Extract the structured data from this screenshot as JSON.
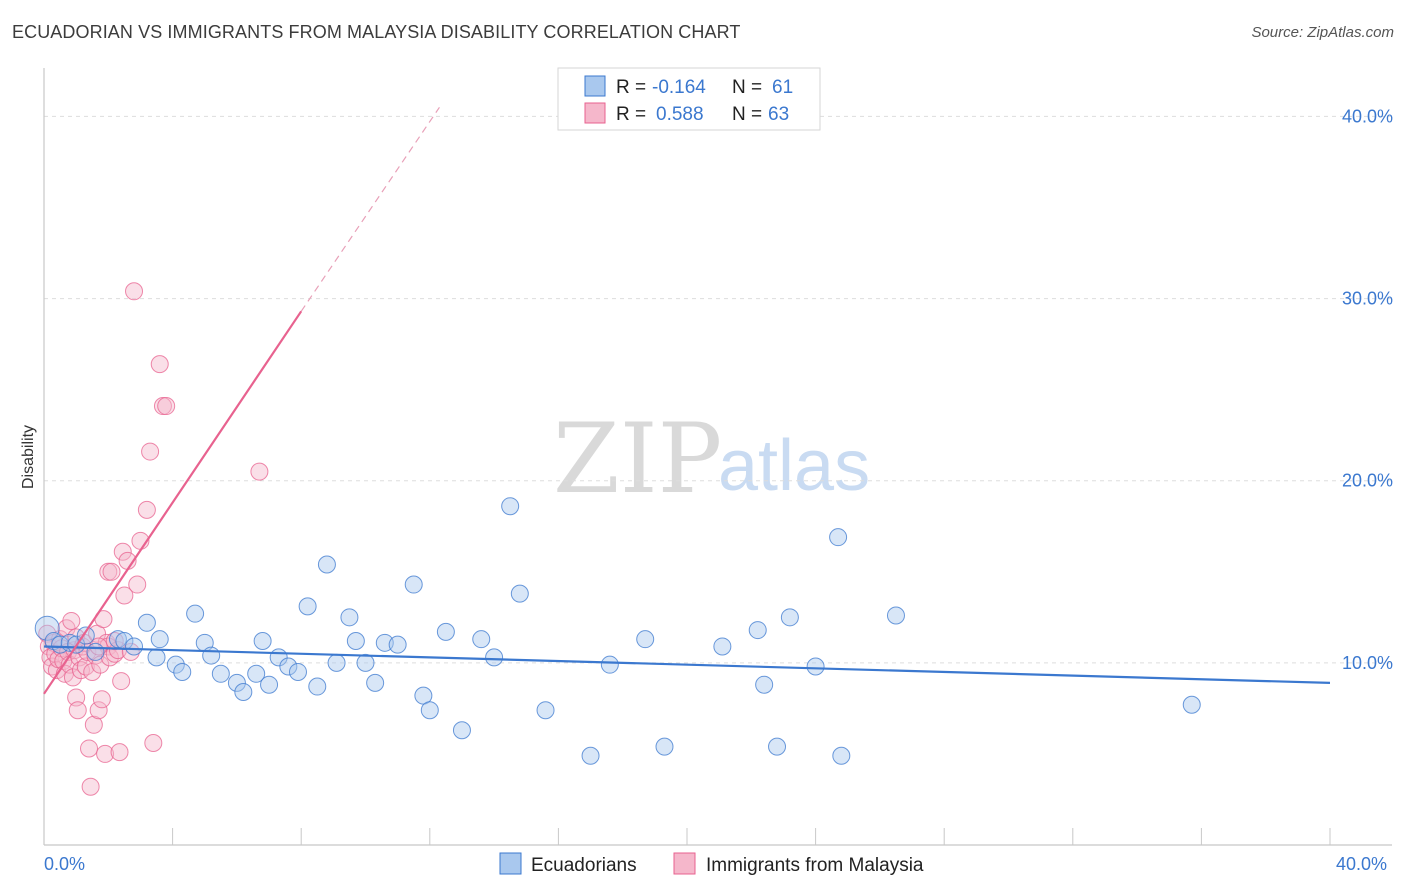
{
  "title": "ECUADORIAN VS IMMIGRANTS FROM MALAYSIA DISABILITY CORRELATION CHART",
  "source": "Source: ZipAtlas.com",
  "watermark": {
    "zip": "ZIP",
    "atlas": "atlas"
  },
  "legend_box": {
    "rows": [
      {
        "r_label": "R =",
        "r_value": "-0.164",
        "n_label": "N =",
        "n_value": "61"
      },
      {
        "r_label": "R =",
        "r_value": "0.588",
        "n_label": "N =",
        "n_value": "63"
      }
    ]
  },
  "colors": {
    "blue": "#3b78cf",
    "blue_fill": "#a9c8ee",
    "pink": "#e8628f",
    "pink_fill": "#f5b7cb",
    "grid": "#dddddd"
  },
  "chart_data": {
    "type": "scatter",
    "title": "ECUADORIAN VS IMMIGRANTS FROM MALAYSIA DISABILITY CORRELATION CHART",
    "xlabel": "",
    "ylabel": "Disability",
    "xlim": [
      0,
      40
    ],
    "ylim": [
      0,
      42
    ],
    "x_tick_labels": [
      "0.0%",
      "40.0%"
    ],
    "y_ticks": [
      10,
      20,
      30,
      40
    ],
    "y_tick_labels": [
      "10.0%",
      "20.0%",
      "30.0%",
      "40.0%"
    ],
    "legend": [
      "Ecuadorians",
      "Immigrants from Malaysia"
    ],
    "series": [
      {
        "name": "Ecuadorians",
        "color": "#3b78cf",
        "r": -0.164,
        "n": 61,
        "trend": {
          "x0": 0,
          "y0": 10.9,
          "x1": 40,
          "y1": 8.9
        },
        "points": [
          [
            0.1,
            11.9
          ],
          [
            0.3,
            11.2
          ],
          [
            0.5,
            11.0
          ],
          [
            0.8,
            11.1
          ],
          [
            1.0,
            11.0
          ],
          [
            1.3,
            11.5
          ],
          [
            1.6,
            10.6
          ],
          [
            2.3,
            11.3
          ],
          [
            2.5,
            11.2
          ],
          [
            2.8,
            10.9
          ],
          [
            3.2,
            12.2
          ],
          [
            3.5,
            10.3
          ],
          [
            3.6,
            11.3
          ],
          [
            4.1,
            9.9
          ],
          [
            4.3,
            9.5
          ],
          [
            4.7,
            12.7
          ],
          [
            5.0,
            11.1
          ],
          [
            5.2,
            10.4
          ],
          [
            5.5,
            9.4
          ],
          [
            6.0,
            8.9
          ],
          [
            6.2,
            8.4
          ],
          [
            6.6,
            9.4
          ],
          [
            6.8,
            11.2
          ],
          [
            7.0,
            8.8
          ],
          [
            7.3,
            10.3
          ],
          [
            7.6,
            9.8
          ],
          [
            7.9,
            9.5
          ],
          [
            8.2,
            13.1
          ],
          [
            8.5,
            8.7
          ],
          [
            8.8,
            15.4
          ],
          [
            9.1,
            10.0
          ],
          [
            9.5,
            12.5
          ],
          [
            9.7,
            11.2
          ],
          [
            10.0,
            10.0
          ],
          [
            10.3,
            8.9
          ],
          [
            10.6,
            11.1
          ],
          [
            11.0,
            11.0
          ],
          [
            11.5,
            14.3
          ],
          [
            11.8,
            8.2
          ],
          [
            12.0,
            7.4
          ],
          [
            12.5,
            11.7
          ],
          [
            13.0,
            6.3
          ],
          [
            13.6,
            11.3
          ],
          [
            14.0,
            10.3
          ],
          [
            14.5,
            18.6
          ],
          [
            14.8,
            13.8
          ],
          [
            15.6,
            7.4
          ],
          [
            17.0,
            4.9
          ],
          [
            17.6,
            9.9
          ],
          [
            18.7,
            11.3
          ],
          [
            19.3,
            5.4
          ],
          [
            21.1,
            10.9
          ],
          [
            22.2,
            11.8
          ],
          [
            22.4,
            8.8
          ],
          [
            22.8,
            5.4
          ],
          [
            23.2,
            12.5
          ],
          [
            24.0,
            9.8
          ],
          [
            24.7,
            16.9
          ],
          [
            24.8,
            4.9
          ],
          [
            26.5,
            12.6
          ],
          [
            35.7,
            7.7
          ]
        ]
      },
      {
        "name": "Immigrants from Malaysia",
        "color": "#e8628f",
        "r": 0.588,
        "n": 63,
        "trend": {
          "x0": 0,
          "y0": 8.3,
          "x1": 8.0,
          "y1": 29.3
        },
        "trend_dashed": {
          "x0": 8.0,
          "y0": 29.3,
          "x1": 12.3,
          "y1": 40.5
        },
        "points": [
          [
            0.1,
            11.6
          ],
          [
            0.15,
            10.9
          ],
          [
            0.2,
            10.3
          ],
          [
            0.25,
            9.8
          ],
          [
            0.3,
            11.1
          ],
          [
            0.35,
            10.5
          ],
          [
            0.4,
            9.6
          ],
          [
            0.45,
            10.2
          ],
          [
            0.5,
            11.3
          ],
          [
            0.55,
            10.8
          ],
          [
            0.6,
            10.1
          ],
          [
            0.65,
            9.4
          ],
          [
            0.7,
            11.9
          ],
          [
            0.75,
            10.6
          ],
          [
            0.8,
            9.9
          ],
          [
            0.85,
            12.3
          ],
          [
            0.9,
            9.2
          ],
          [
            0.95,
            10.7
          ],
          [
            1.0,
            8.1
          ],
          [
            1.0,
            11.4
          ],
          [
            1.05,
            7.4
          ],
          [
            1.1,
            10.3
          ],
          [
            1.15,
            9.6
          ],
          [
            1.2,
            10.9
          ],
          [
            1.25,
            11.1
          ],
          [
            1.3,
            9.8
          ],
          [
            1.35,
            10.6
          ],
          [
            1.4,
            5.3
          ],
          [
            1.45,
            3.2
          ],
          [
            1.5,
            9.5
          ],
          [
            1.55,
            6.6
          ],
          [
            1.6,
            10.4
          ],
          [
            1.65,
            11.6
          ],
          [
            1.7,
            7.4
          ],
          [
            1.75,
            9.9
          ],
          [
            1.8,
            8.0
          ],
          [
            1.85,
            12.4
          ],
          [
            1.9,
            5.0
          ],
          [
            1.95,
            11.1
          ],
          [
            2.0,
            10.9
          ],
          [
            2.0,
            15.0
          ],
          [
            2.05,
            10.3
          ],
          [
            2.1,
            15.0
          ],
          [
            2.2,
            10.5
          ],
          [
            2.3,
            10.7
          ],
          [
            2.35,
            5.1
          ],
          [
            2.4,
            9.0
          ],
          [
            2.45,
            16.1
          ],
          [
            2.5,
            13.7
          ],
          [
            2.6,
            15.6
          ],
          [
            2.7,
            10.6
          ],
          [
            2.8,
            30.4
          ],
          [
            2.9,
            14.3
          ],
          [
            3.0,
            16.7
          ],
          [
            3.2,
            18.4
          ],
          [
            3.3,
            21.6
          ],
          [
            3.4,
            5.6
          ],
          [
            3.6,
            26.4
          ],
          [
            3.7,
            24.1
          ],
          [
            3.8,
            24.1
          ],
          [
            6.7,
            20.5
          ],
          [
            1.7,
            10.9
          ],
          [
            2.2,
            11.2
          ]
        ]
      }
    ]
  }
}
